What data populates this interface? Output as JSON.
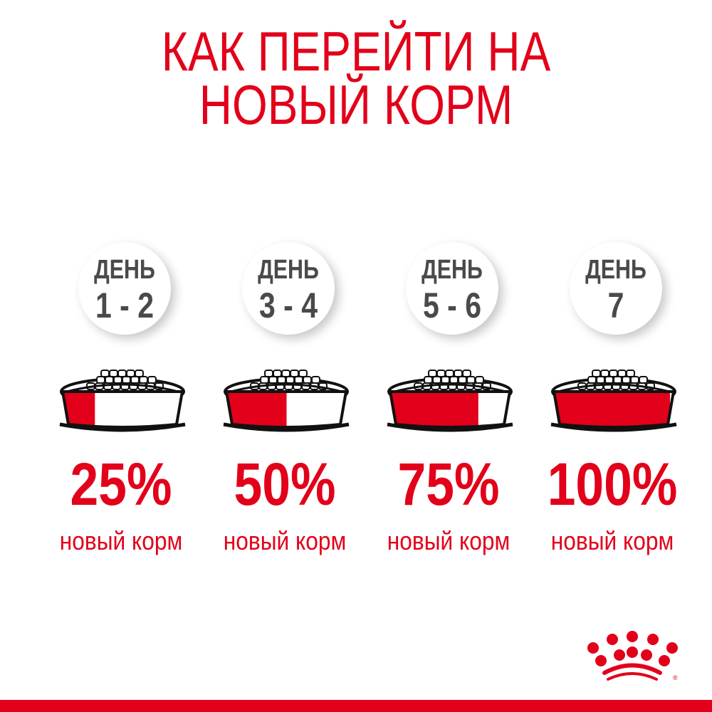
{
  "title": {
    "line1": "КАК ПЕРЕЙТИ НА",
    "line2": "НОВЫЙ КОРМ"
  },
  "accent_color": "#e2001a",
  "steps": [
    {
      "day_label": "ДЕНЬ",
      "days": "1 - 2",
      "percent_text": "25%",
      "new_food_fraction": 0.25,
      "caption": "новый корм"
    },
    {
      "day_label": "ДЕНЬ",
      "days": "3 - 4",
      "percent_text": "50%",
      "new_food_fraction": 0.5,
      "caption": "новый корм"
    },
    {
      "day_label": "ДЕНЬ",
      "days": "5 - 6",
      "percent_text": "75%",
      "new_food_fraction": 0.75,
      "caption": "новый корм"
    },
    {
      "day_label": "ДЕНЬ",
      "days": "7",
      "percent_text": "100%",
      "new_food_fraction": 1.0,
      "caption": "новый корм"
    }
  ],
  "logo": "royal-canin-crown-logo"
}
